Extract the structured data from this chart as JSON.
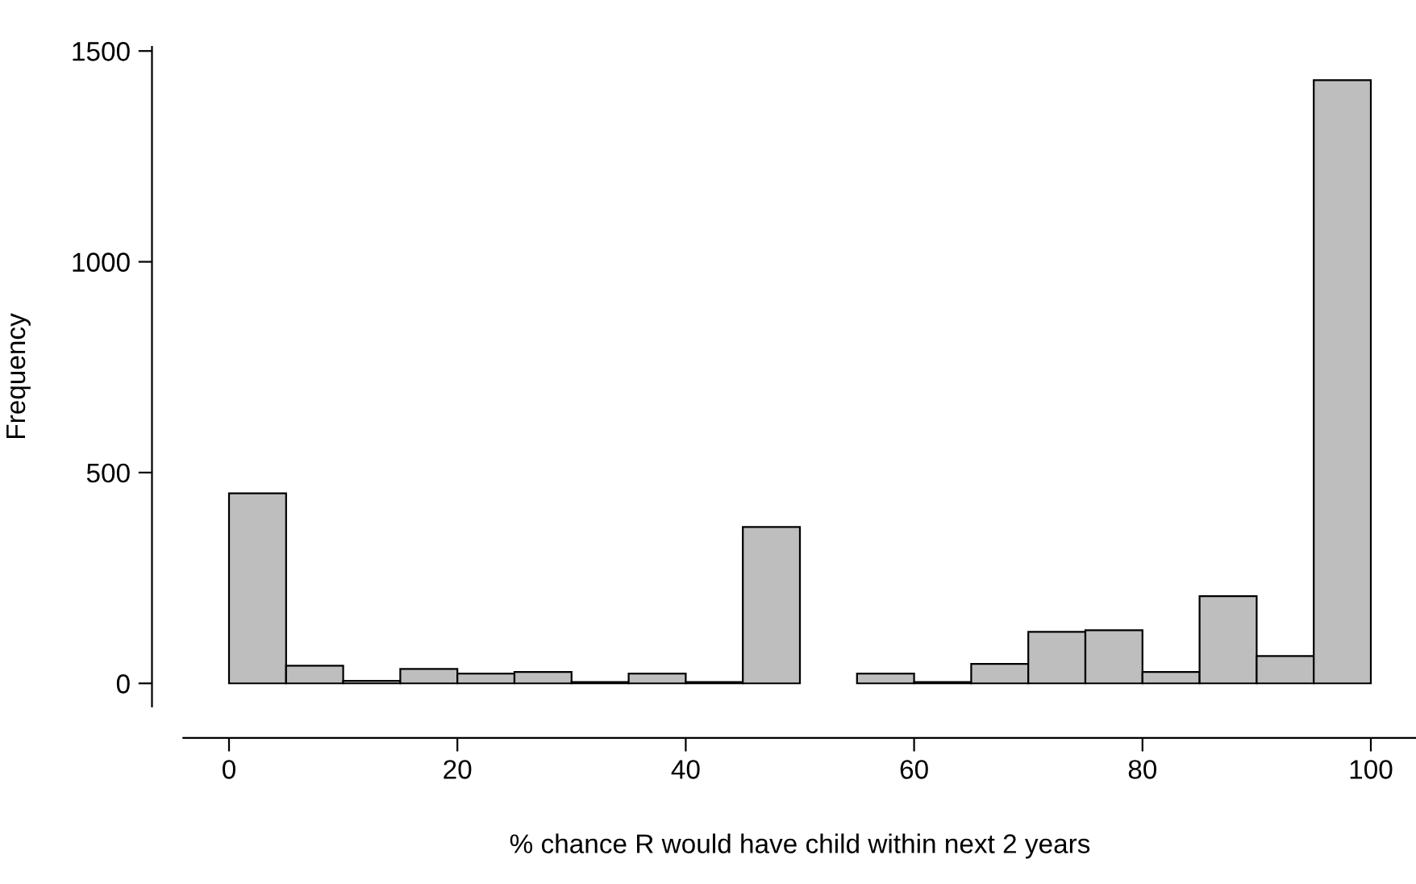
{
  "chart_data": {
    "type": "histogram",
    "xlabel": "% chance R would have child within next 2 years",
    "ylabel": "Frequency",
    "bins": [
      0,
      5,
      10,
      15,
      20,
      25,
      30,
      35,
      40,
      45,
      50,
      55,
      60,
      65,
      70,
      75,
      80,
      85,
      90,
      95,
      100
    ],
    "values": [
      451,
      42,
      6,
      34,
      23,
      27,
      3,
      23,
      3,
      371,
      0,
      23,
      3,
      46,
      122,
      126,
      27,
      207,
      65,
      1431
    ],
    "color": "#bebebe",
    "xlim": [
      -4,
      104
    ],
    "ylim": [
      -55,
      1510
    ],
    "xticks": [
      0,
      20,
      40,
      60,
      80,
      100
    ],
    "yticks": [
      0,
      500,
      1000,
      1500
    ],
    "grid": false
  }
}
